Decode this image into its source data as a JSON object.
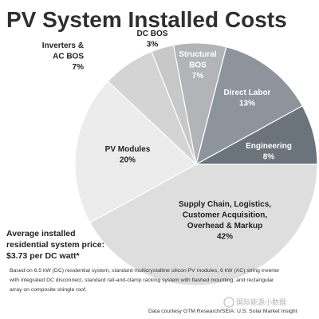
{
  "chart_data": {
    "type": "pie",
    "title": "PV System Installed Costs",
    "slices": [
      {
        "name": "Supply Chain, Logistics, Customer Acquisition, Overhead & Markup",
        "lines": [
          "Supply Chain, Logistics,",
          "Customer Acquisition,",
          "Overhead & Markup",
          "42%"
        ],
        "value": 42,
        "color": "#dedede"
      },
      {
        "name": "PV Modules",
        "lines": [
          "PV Modules",
          "20%"
        ],
        "value": 20,
        "color": "#ececec"
      },
      {
        "name": "Inverters & AC BOS",
        "lines": [
          "Inverters &",
          "AC BOS",
          "7%"
        ],
        "value": 7,
        "color": "#d4d4d4"
      },
      {
        "name": "DC BOS",
        "lines": [
          "DC BOS",
          "3%"
        ],
        "value": 3,
        "color": "#c8c8c8"
      },
      {
        "name": "Structural BOS",
        "lines": [
          "Structural",
          "BOS",
          "7%"
        ],
        "value": 7,
        "color": "#b2b4b7"
      },
      {
        "name": "Direct Labor",
        "lines": [
          "Direct Labor",
          "13%"
        ],
        "value": 13,
        "color": "#8d949b"
      },
      {
        "name": "Engineering",
        "lines": [
          "Engineering",
          "8%"
        ],
        "value": 8,
        "color": "#6c747b"
      }
    ]
  },
  "price_note": [
    "Average installed",
    "residential system price:",
    "$3.73 per DC watt*"
  ],
  "footnote": [
    "Based on 6.5 kW (DC) residential system, standard multicrystalline silicon PV modules, 6 kW (AC) string inverter",
    "with integrated DC disconnect, standard rail-and-clamp racking system with flashed mounting, and rectangular",
    "array on composite shingle roof."
  ],
  "credit": "Data courtesy GTM Research/SEIA: U.S. Solar Market Insight",
  "watermark": "国际能源小数据"
}
